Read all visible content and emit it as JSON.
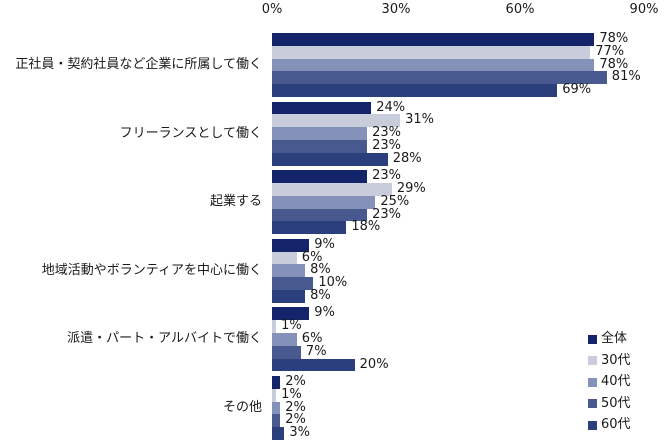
{
  "chart_data": {
    "type": "bar",
    "orientation": "horizontal",
    "title": "",
    "categories": [
      "正社員・契約社員など企業に所属して働く",
      "フリーランスとして働く",
      "起業する",
      "地域活動やボランティアを中心に働く",
      "派遣・パート・アルバイトで働く",
      "その他"
    ],
    "series": [
      {
        "name": "全体",
        "color": "#14246a",
        "values": [
          78,
          24,
          23,
          9,
          9,
          2
        ]
      },
      {
        "name": "30代",
        "color": "#c9cddb",
        "values": [
          77,
          31,
          29,
          6,
          1,
          1
        ]
      },
      {
        "name": "40代",
        "color": "#8492ba",
        "values": [
          78,
          23,
          25,
          8,
          6,
          2
        ]
      },
      {
        "name": "50代",
        "color": "#47598f",
        "values": [
          81,
          23,
          23,
          10,
          7,
          2
        ]
      },
      {
        "name": "60代",
        "color": "#2b3f7d",
        "values": [
          69,
          28,
          18,
          8,
          20,
          3
        ]
      }
    ],
    "value_label_suffix": "%",
    "x_axis": {
      "position": "top",
      "min": 0,
      "max": 90,
      "tick_values": [
        0,
        30,
        60,
        90
      ],
      "tick_labels": [
        "0%",
        "30%",
        "60%",
        "90%"
      ]
    },
    "legend": {
      "position": "bottom-right",
      "entries": [
        "全体",
        "30代",
        "40代",
        "50代",
        "60代"
      ]
    },
    "grid": false,
    "background_color": "#ffffff",
    "text_color": "#1a1a1a"
  }
}
